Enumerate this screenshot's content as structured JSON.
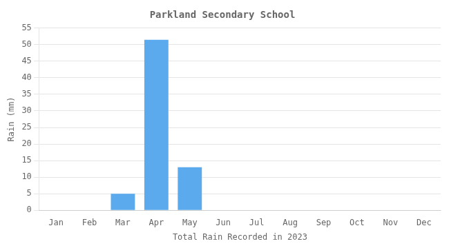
{
  "chart_data": {
    "type": "bar",
    "title": "Parkland Secondary School",
    "xlabel": "Total Rain Recorded in 2023",
    "ylabel": "Rain (mm)",
    "categories": [
      "Jan",
      "Feb",
      "Mar",
      "Apr",
      "May",
      "Jun",
      "Jul",
      "Aug",
      "Sep",
      "Oct",
      "Nov",
      "Dec"
    ],
    "values": [
      0,
      0,
      5,
      51.5,
      13,
      0,
      0,
      0,
      0,
      0,
      0,
      0
    ],
    "color": "#5BAAEE",
    "ylim": [
      0,
      55
    ],
    "yticks": [
      0,
      5,
      10,
      15,
      20,
      25,
      30,
      35,
      40,
      45,
      50,
      55
    ],
    "grid": true
  }
}
